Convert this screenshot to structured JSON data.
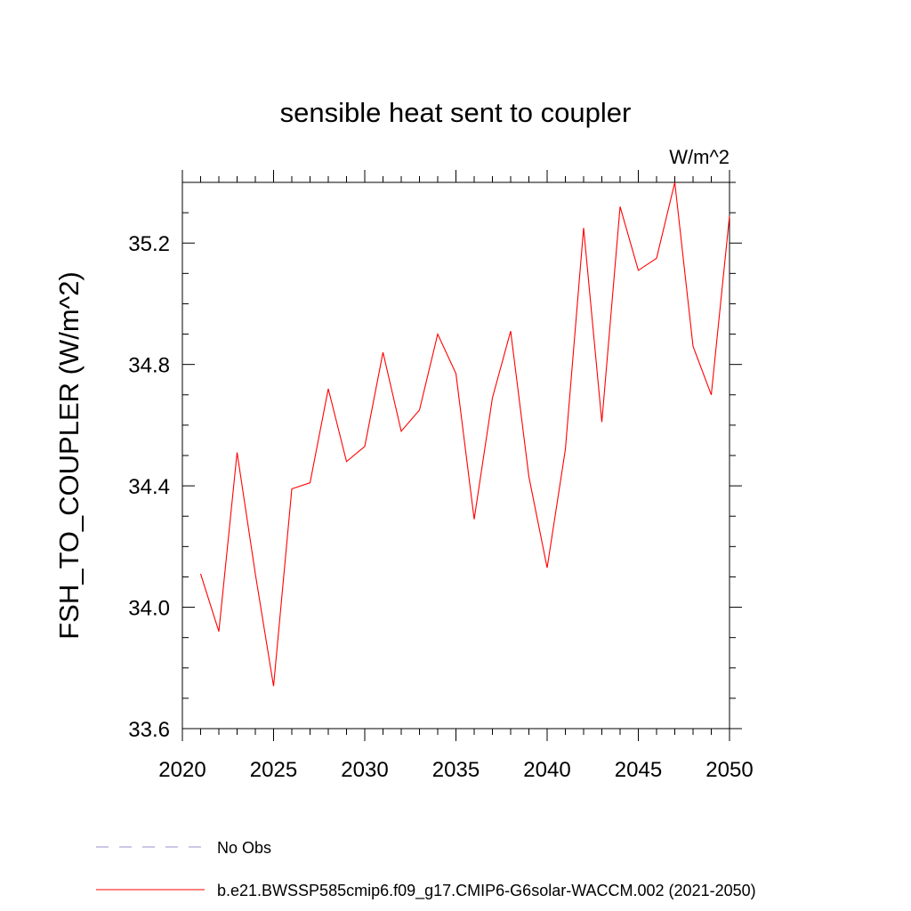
{
  "chart_data": {
    "type": "line",
    "title": "sensible heat sent to coupler",
    "units_label": "W/m^2",
    "ylabel": "FSH_TO_COUPLER  (W/m^2)",
    "xlabel": "",
    "xlim": [
      2020,
      2050
    ],
    "ylim": [
      33.6,
      35.4
    ],
    "x_ticks": [
      2020,
      2025,
      2030,
      2035,
      2040,
      2045,
      2050
    ],
    "y_ticks": [
      33.6,
      34.0,
      34.4,
      34.8,
      35.2
    ],
    "x_tick_labels": [
      "2020",
      "2025",
      "2030",
      "2035",
      "2040",
      "2045",
      "2050"
    ],
    "y_tick_labels": [
      "33.6",
      "34.0",
      "34.4",
      "34.8",
      "35.2"
    ],
    "grid": false,
    "legend_position": "bottom",
    "series": [
      {
        "name": "No Obs",
        "style": "dashed",
        "color": "#9a8fc8",
        "x": [],
        "y": []
      },
      {
        "name": "b.e21.BWSSP585cmip6.f09_g17.CMIP6-G6solar-WACCM.002 (2021-2050)",
        "style": "solid",
        "color": "#ff0000",
        "x": [
          2021,
          2022,
          2023,
          2024,
          2025,
          2026,
          2027,
          2028,
          2029,
          2030,
          2031,
          2032,
          2033,
          2034,
          2035,
          2036,
          2037,
          2038,
          2039,
          2040,
          2041,
          2042,
          2043,
          2044,
          2045,
          2046,
          2047,
          2048,
          2049,
          2050
        ],
        "y": [
          34.11,
          33.92,
          34.51,
          34.11,
          33.74,
          34.39,
          34.41,
          34.72,
          34.48,
          34.53,
          34.84,
          34.58,
          34.65,
          34.9,
          34.77,
          34.29,
          34.69,
          34.91,
          34.43,
          34.13,
          34.52,
          35.25,
          34.61,
          35.32,
          35.11,
          35.15,
          35.4,
          34.86,
          34.7,
          35.29
        ]
      }
    ]
  }
}
